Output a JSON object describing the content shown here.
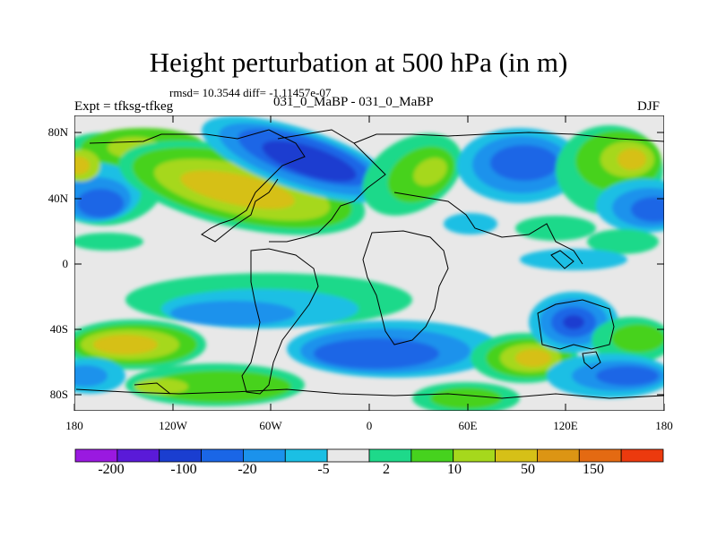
{
  "title": "Height perturbation at 500 hPa (in m)",
  "stats_line": "rmsd= 10.3544 diff= -1.11457e-07",
  "experiment_label": "Expt = tfksg-tfkeg",
  "runs_label": "031_0_MaBP - 031_0_MaBP",
  "season_label": "DJF",
  "axes": {
    "lat_labels": [
      "80N",
      "40N",
      "0",
      "40S",
      "80S"
    ],
    "lon_labels": [
      "180",
      "120W",
      "60W",
      "0",
      "60E",
      "120E",
      "180"
    ]
  },
  "colorbar": {
    "colors": [
      "#9a19e0",
      "#5a1ad8",
      "#1a3ed0",
      "#1a66e6",
      "#1b92ec",
      "#1bbfe4",
      "#e8e8e8",
      "#1ed98a",
      "#46d21e",
      "#a6d81c",
      "#d6c017",
      "#dc9514",
      "#e46a12",
      "#ec3a0e"
    ],
    "labels": [
      "-200",
      "-100",
      "-20",
      "-5",
      "2",
      "10",
      "50",
      "150"
    ]
  },
  "map_colors": {
    "background": "#e8e8e8",
    "frame": "#000000",
    "coastline": "#000000"
  }
}
